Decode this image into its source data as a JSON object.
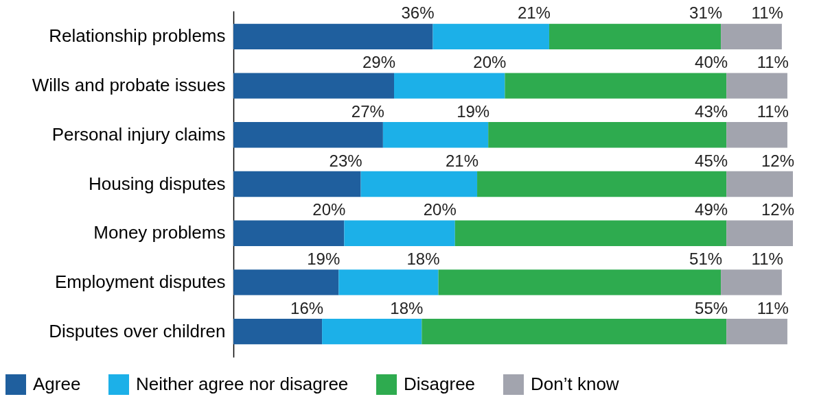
{
  "chart_data": {
    "type": "bar",
    "orientation": "horizontal",
    "stacked": true,
    "legend": "bottom",
    "grid": false,
    "categories": [
      "Relationship problems",
      "Wills and probate issues",
      "Personal injury claims",
      "Housing disputes",
      "Money problems",
      "Employment disputes",
      "Disputes over children"
    ],
    "series": [
      {
        "name": "Agree",
        "color": "#1f5f9e",
        "values": [
          36,
          29,
          27,
          23,
          20,
          19,
          16
        ],
        "value_labels": [
          "36%",
          "29%",
          "27%",
          "23%",
          "20%",
          "19%",
          "16%"
        ]
      },
      {
        "name": "Neither agree nor disagree",
        "color": "#1cb0e8",
        "values": [
          21,
          20,
          19,
          21,
          20,
          18,
          18
        ],
        "value_labels": [
          "21%",
          "20%",
          "19%",
          "21%",
          "20%",
          "18%",
          "18%"
        ]
      },
      {
        "name": "Disagree",
        "color": "#2eab4f",
        "values": [
          31,
          40,
          43,
          45,
          49,
          51,
          55
        ],
        "value_labels": [
          "31%",
          "40%",
          "43%",
          "45%",
          "49%",
          "51%",
          "55%"
        ]
      },
      {
        "name": "Don’t know",
        "color": "#a2a4ae",
        "values": [
          11,
          11,
          11,
          12,
          12,
          11,
          11
        ],
        "value_labels": [
          "11%",
          "11%",
          "11%",
          "12%",
          "12%",
          "11%",
          "11%"
        ]
      }
    ]
  }
}
